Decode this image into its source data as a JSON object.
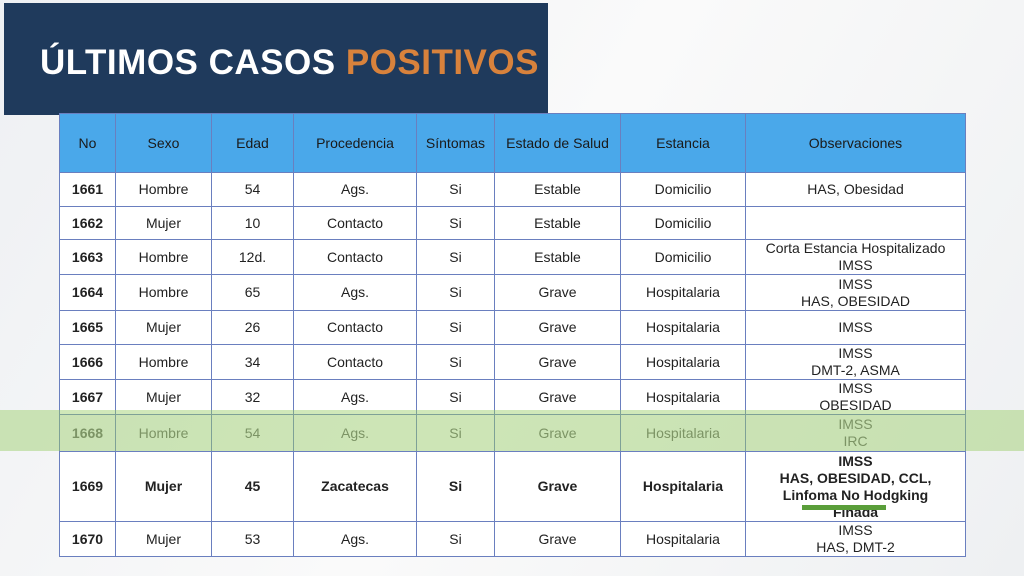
{
  "title": {
    "main": "ÚLTIMOS CASOS",
    "accent": "POSITIVOS"
  },
  "columns": [
    "No",
    "Sexo",
    "Edad",
    "Procedencia",
    "Síntomas",
    "Estado de Salud",
    "Estancia",
    "Observaciones"
  ],
  "rows": [
    {
      "no": "1661",
      "sexo": "Hombre",
      "edad": "54",
      "procedencia": "Ags.",
      "sintomas": "Si",
      "estado": "Estable",
      "estancia": "Domicilio",
      "obs": [
        "HAS, Obesidad"
      ]
    },
    {
      "no": "1662",
      "sexo": "Mujer",
      "edad": "10",
      "procedencia": "Contacto",
      "sintomas": "Si",
      "estado": "Estable",
      "estancia": "Domicilio",
      "obs": []
    },
    {
      "no": "1663",
      "sexo": "Hombre",
      "edad": "12d.",
      "procedencia": "Contacto",
      "sintomas": "Si",
      "estado": "Estable",
      "estancia": "Domicilio",
      "obs": [
        "Corta Estancia Hospitalizado",
        "IMSS"
      ]
    },
    {
      "no": "1664",
      "sexo": "Hombre",
      "edad": "65",
      "procedencia": "Ags.",
      "sintomas": "Si",
      "estado": "Grave",
      "estancia": "Hospitalaria",
      "obs": [
        "IMSS",
        "HAS, OBESIDAD"
      ]
    },
    {
      "no": "1665",
      "sexo": "Mujer",
      "edad": "26",
      "procedencia": "Contacto",
      "sintomas": "Si",
      "estado": "Grave",
      "estancia": "Hospitalaria",
      "obs": [
        "IMSS"
      ]
    },
    {
      "no": "1666",
      "sexo": "Hombre",
      "edad": "34",
      "procedencia": "Contacto",
      "sintomas": "Si",
      "estado": "Grave",
      "estancia": "Hospitalaria",
      "obs": [
        "IMSS",
        "DMT-2, ASMA"
      ]
    },
    {
      "no": "1667",
      "sexo": "Mujer",
      "edad": "32",
      "procedencia": "Ags.",
      "sintomas": "Si",
      "estado": "Grave",
      "estancia": "Hospitalaria",
      "obs": [
        "IMSS",
        "OBESIDAD"
      ]
    },
    {
      "no": "1668",
      "sexo": "Hombre",
      "edad": "54",
      "procedencia": "Ags.",
      "sintomas": "Si",
      "estado": "Grave",
      "estancia": "Hospitalaria",
      "obs": [
        "IMSS",
        "IRC"
      ],
      "highlighted": true
    },
    {
      "no": "1669",
      "sexo": "Mujer",
      "edad": "45",
      "procedencia": "Zacatecas",
      "sintomas": "Si",
      "estado": "Grave",
      "estancia": "Hospitalaria",
      "obs": [
        "IMSS",
        "HAS, OBESIDAD, CCL,",
        "Linfoma No Hodgking",
        "Finada"
      ],
      "bold": true
    },
    {
      "no": "1670",
      "sexo": "Mujer",
      "edad": "53",
      "procedencia": "Ags.",
      "sintomas": "Si",
      "estado": "Grave",
      "estancia": "Hospitalaria",
      "obs": [
        "IMSS",
        "HAS, DMT-2"
      ]
    }
  ]
}
